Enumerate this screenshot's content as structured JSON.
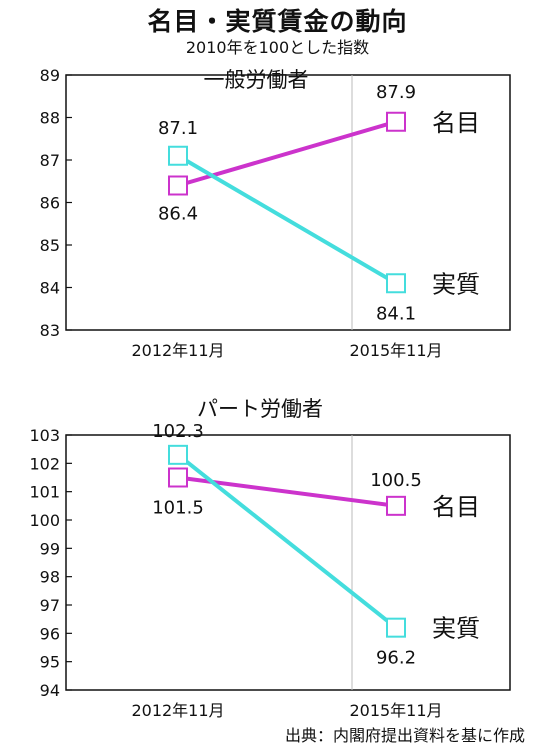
{
  "title": "名目・実質賃金の動向",
  "subtitle": "2010年を100とした指数",
  "source": "出典：内閣府提出資料を基に作成",
  "chart_data": [
    {
      "type": "line",
      "title": "一般労働者",
      "categories": [
        "2012年11月",
        "2015年11月"
      ],
      "ylim": [
        83,
        89
      ],
      "yticks": [
        83,
        84,
        85,
        86,
        87,
        88,
        89
      ],
      "series": [
        {
          "name": "名目",
          "values": [
            86.4,
            87.9
          ],
          "labels": [
            "86.4",
            "87.9"
          ],
          "color": "#cc33cc"
        },
        {
          "name": "実質",
          "values": [
            87.1,
            84.1
          ],
          "labels": [
            "87.1",
            "84.1"
          ],
          "color": "#44dddd"
        }
      ]
    },
    {
      "type": "line",
      "title": "パート労働者",
      "categories": [
        "2012年11月",
        "2015年11月"
      ],
      "ylim": [
        94,
        103
      ],
      "yticks": [
        94,
        95,
        96,
        97,
        98,
        99,
        100,
        101,
        102,
        103
      ],
      "series": [
        {
          "name": "名目",
          "values": [
            101.5,
            100.5
          ],
          "labels": [
            "101.5",
            "100.5"
          ],
          "color": "#cc33cc"
        },
        {
          "name": "実質",
          "values": [
            102.3,
            96.2
          ],
          "labels": [
            "102.3",
            "96.2"
          ],
          "color": "#44dddd"
        }
      ]
    }
  ]
}
